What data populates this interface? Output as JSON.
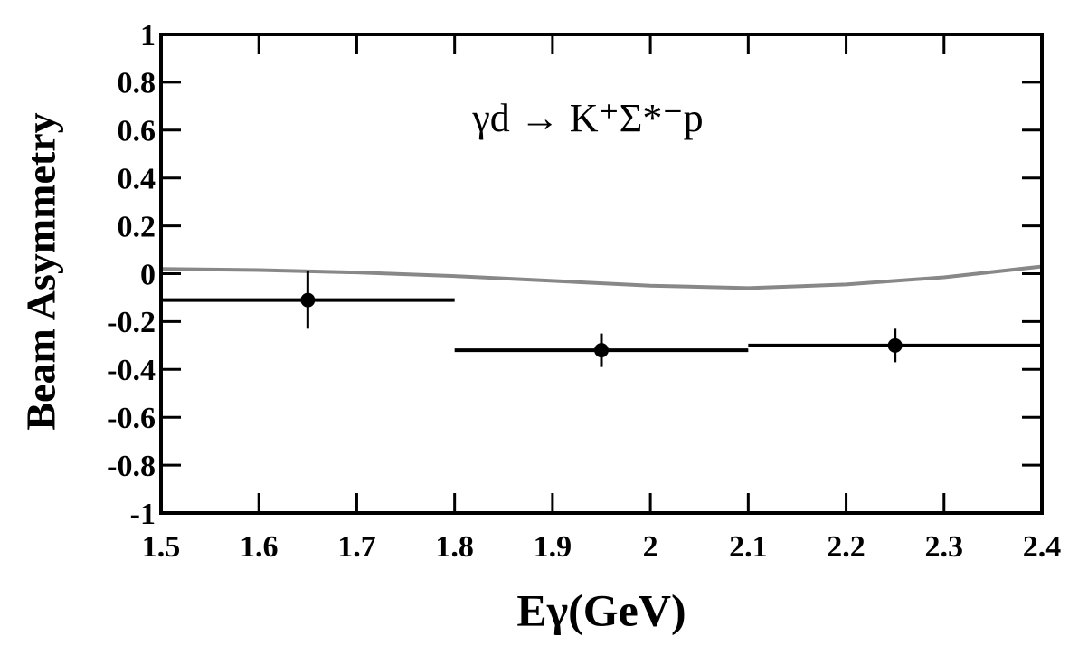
{
  "chart_data": {
    "type": "scatter",
    "annotation": "γd → K⁺Σ*⁻p",
    "x_label": "Eγ(GeV)",
    "y_label": "Beam Asymmetry",
    "xlim": [
      1.5,
      2.4
    ],
    "xticks": [
      1.5,
      1.6,
      1.7,
      1.8,
      1.9,
      2,
      2.1,
      2.2,
      2.3,
      2.4
    ],
    "ylim": [
      -1,
      1
    ],
    "yticks": [
      -1,
      -0.8,
      -0.6,
      -0.4,
      -0.2,
      0,
      0.2,
      0.4,
      0.6,
      0.8,
      1
    ],
    "points": {
      "color": "#000000",
      "x": [
        1.65,
        1.95,
        2.25
      ],
      "y": [
        -0.11,
        -0.32,
        -0.3
      ],
      "xerr": [
        0.15,
        0.15,
        0.15
      ],
      "yerr": [
        0.12,
        0.07,
        0.07
      ]
    },
    "curve": {
      "color": "#888888",
      "x": [
        1.5,
        1.6,
        1.7,
        1.8,
        1.9,
        2.0,
        2.1,
        2.2,
        2.3,
        2.4
      ],
      "y": [
        0.02,
        0.015,
        0.005,
        -0.01,
        -0.03,
        -0.05,
        -0.06,
        -0.045,
        -0.015,
        0.03
      ]
    }
  }
}
